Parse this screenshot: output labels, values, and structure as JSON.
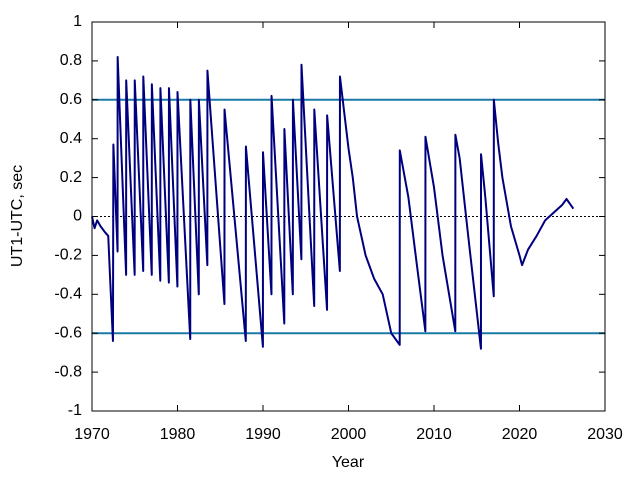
{
  "chart_data": {
    "type": "line",
    "x_label": "Year",
    "y_label": "UT1-UTC, sec",
    "x": [
      1970.0,
      1970.3,
      1970.6,
      1971.0,
      1971.5,
      1971.9,
      1972.1,
      1972.45,
      1972.5,
      1972.99,
      1973.0,
      1973.99,
      1974.0,
      1974.99,
      1975.0,
      1975.99,
      1976.0,
      1976.99,
      1977.0,
      1977.99,
      1978.0,
      1978.99,
      1979.0,
      1979.99,
      1980.0,
      1981.49,
      1981.5,
      1982.49,
      1982.5,
      1983.49,
      1983.5,
      1985.49,
      1985.5,
      1987.99,
      1988.0,
      1989.99,
      1990.0,
      1990.99,
      1991.0,
      1992.49,
      1992.5,
      1993.49,
      1993.5,
      1994.49,
      1994.5,
      1995.99,
      1996.0,
      1997.49,
      1997.5,
      1998.99,
      1999.0,
      2000.0,
      2000.5,
      2001.0,
      2002.0,
      2003.0,
      2004.0,
      2005.0,
      2005.99,
      2006.0,
      2007.0,
      2008.0,
      2008.99,
      2009.0,
      2010.0,
      2011.0,
      2012.49,
      2012.5,
      2013.0,
      2014.0,
      2015.49,
      2015.5,
      2016.0,
      2016.99,
      2017.0,
      2017.5,
      2018.0,
      2019.0,
      2020.0,
      2020.3,
      2021.0,
      2022.0,
      2023.0,
      2024.0,
      2025.0,
      2025.5,
      2026.3
    ],
    "series": [
      {
        "color": "#00007f",
        "values": [
          0.0,
          -0.06,
          -0.02,
          -0.05,
          -0.08,
          -0.1,
          -0.3,
          -0.64,
          0.37,
          -0.18,
          0.82,
          -0.3,
          0.7,
          -0.3,
          0.7,
          -0.28,
          0.72,
          -0.3,
          0.68,
          -0.33,
          0.66,
          -0.34,
          0.66,
          -0.36,
          0.64,
          -0.63,
          0.6,
          -0.4,
          0.6,
          -0.25,
          0.75,
          -0.45,
          0.55,
          -0.64,
          0.36,
          -0.67,
          0.33,
          -0.4,
          0.62,
          -0.55,
          0.45,
          -0.4,
          0.6,
          -0.22,
          0.78,
          -0.46,
          0.55,
          -0.48,
          0.52,
          -0.28,
          0.72,
          0.35,
          0.2,
          0.0,
          -0.2,
          -0.32,
          -0.4,
          -0.6,
          -0.66,
          0.34,
          0.1,
          -0.25,
          -0.59,
          0.41,
          0.15,
          -0.2,
          -0.59,
          0.42,
          0.3,
          -0.1,
          -0.68,
          0.32,
          0.1,
          -0.41,
          0.6,
          0.38,
          0.2,
          -0.05,
          -0.2,
          -0.25,
          -0.17,
          -0.1,
          -0.02,
          0.02,
          0.06,
          0.09,
          0.04
        ]
      }
    ],
    "reference_lines": [
      {
        "value": 0.6,
        "color": "#1a7aa6",
        "dashed": false
      },
      {
        "value": -0.6,
        "color": "#1a7aa6",
        "dashed": false
      },
      {
        "value": 0,
        "color": "#000000",
        "dashed": true
      }
    ],
    "xlim": [
      1970,
      2030
    ],
    "xticks": [
      1970,
      1980,
      1990,
      2000,
      2010,
      2020,
      2030
    ],
    "ylim": [
      -1,
      1
    ],
    "yticks": [
      -1,
      -0.8,
      -0.6,
      -0.4,
      -0.2,
      0,
      0.2,
      0.4,
      0.6,
      0.8,
      1
    ]
  }
}
